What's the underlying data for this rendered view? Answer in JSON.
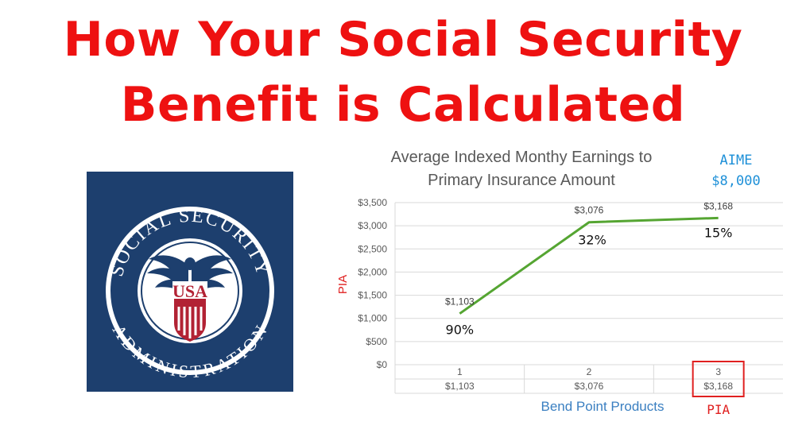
{
  "headline": {
    "line1": "How Your Social Security",
    "line2": "Benefit is Calculated"
  },
  "logo": {
    "arc_top": "SOCIAL SECURITY",
    "arc_bottom": "ADMINISTRATION",
    "center_text": "USA",
    "colors": {
      "background": "#1d3f6e",
      "ring": "#ffffff",
      "shield": "#b22234"
    }
  },
  "chart_data": {
    "type": "line",
    "title": [
      "Average Indexed Monthy Earnings to",
      "Primary Insurance Amount"
    ],
    "categories": [
      "1",
      "2",
      "3"
    ],
    "values": [
      1103,
      3076,
      3168
    ],
    "data_labels": [
      "$1,103",
      "$3,076",
      "$3,168"
    ],
    "table_row": [
      "$1,103",
      "$3,076",
      "$3,168"
    ],
    "ylabel": "PIA",
    "xlabel": "Bend Point Products",
    "ylim": [
      0,
      3500
    ],
    "yticks": [
      {
        "value": 0,
        "label": "$0"
      },
      {
        "value": 500,
        "label": "$500"
      },
      {
        "value": 1000,
        "label": "$1,000"
      },
      {
        "value": 1500,
        "label": "$1,500"
      },
      {
        "value": 2000,
        "label": "$2,000"
      },
      {
        "value": 2500,
        "label": "$2,500"
      },
      {
        "value": 3000,
        "label": "$3,000"
      },
      {
        "value": 3500,
        "label": "$3,500"
      }
    ],
    "grid": true,
    "percent_annotations": [
      "90%",
      "32%",
      "15%"
    ],
    "aime_label": "AIME",
    "aime_value": "$8,000",
    "pia_callout": "PIA",
    "colors": {
      "line": "#55a532",
      "grid": "#d9d9d9",
      "annotation_blue": "#1e90d8",
      "annotation_red": "#e02020",
      "axis_text": "#595959",
      "xlabel": "#3a7fc1"
    }
  }
}
